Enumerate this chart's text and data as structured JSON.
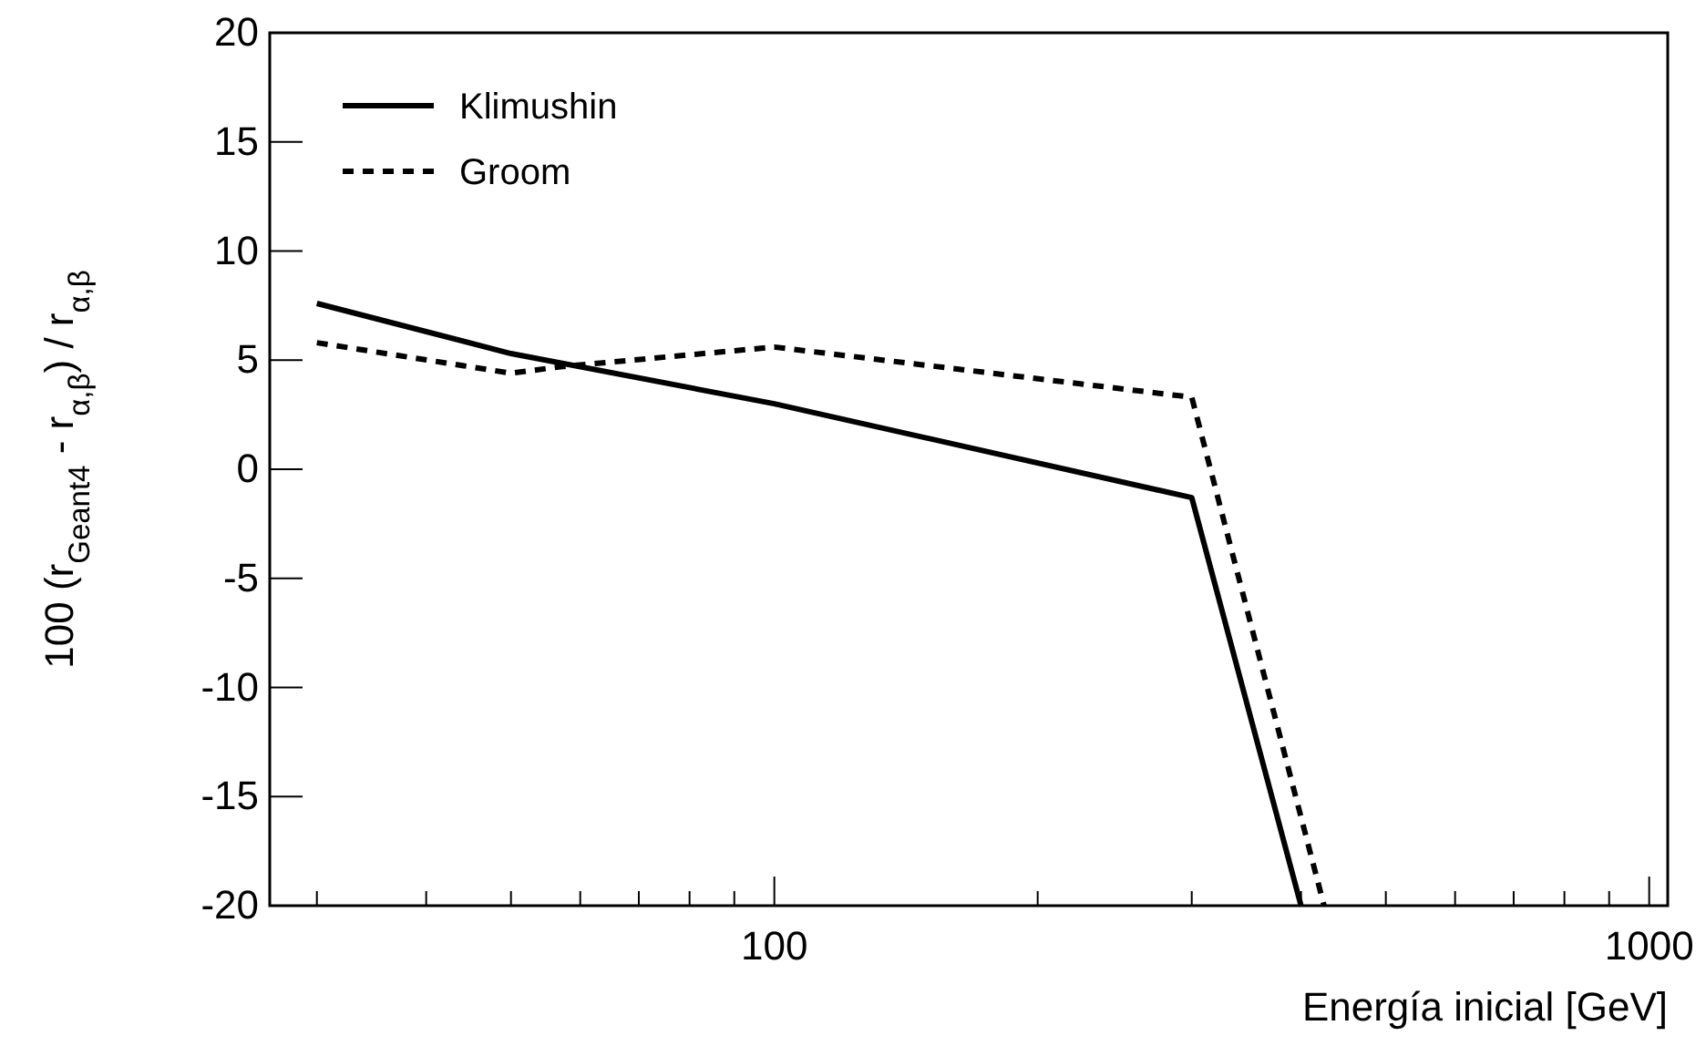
{
  "chart_data": {
    "type": "line",
    "xlabel": "Energía inicial [GeV]",
    "ylabel": "100 (r$_{Geant4}$ - r$_{α,β}$) / r$_{α,β}$",
    "xlim": [
      26.5,
      1050
    ],
    "ylim": [
      -20,
      20
    ],
    "log": "x",
    "xticks": [
      {
        "value": 30,
        "label": null
      },
      {
        "value": 40,
        "label": null
      },
      {
        "value": 50,
        "label": null
      },
      {
        "value": 60,
        "label": null
      },
      {
        "value": 70,
        "label": null
      },
      {
        "value": 80,
        "label": null
      },
      {
        "value": 90,
        "label": null
      },
      100,
      {
        "value": 200,
        "label": null
      },
      {
        "value": 300,
        "label": null
      },
      {
        "value": 400,
        "label": null
      },
      {
        "value": 500,
        "label": null
      },
      {
        "value": 600,
        "label": null
      },
      {
        "value": 700,
        "label": null
      },
      {
        "value": 800,
        "label": null
      },
      {
        "value": 900,
        "label": null
      },
      1000
    ],
    "yticks": [
      -20,
      -15,
      -10,
      -5,
      0,
      5,
      10,
      15,
      20
    ],
    "grid": false,
    "legend": "top left",
    "series": [
      {
        "name": "Klimushin",
        "color": "#000000",
        "line_style": "solid",
        "x": [
          30,
          50,
          100,
          300,
          400
        ],
        "values": [
          7.6,
          5.3,
          3.0,
          -1.3,
          -20
        ]
      },
      {
        "name": "Groom",
        "color": "#000000",
        "line_style": "dashed",
        "x": [
          30,
          50,
          57,
          100,
          300,
          425
        ],
        "values": [
          5.8,
          4.4,
          4.7,
          5.6,
          3.3,
          -20
        ]
      }
    ]
  }
}
